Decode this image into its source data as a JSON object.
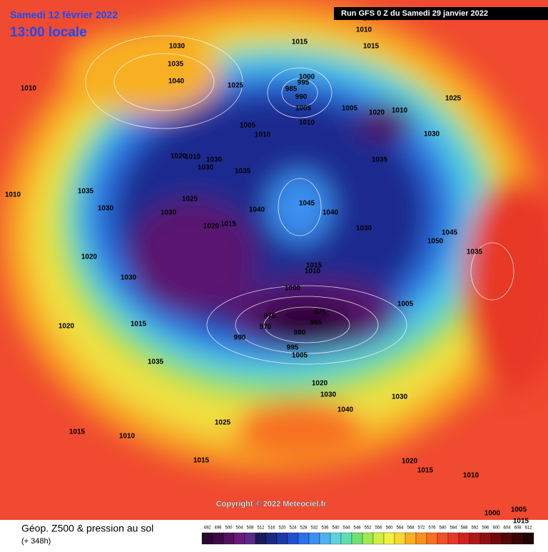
{
  "header": {
    "date": "Samedi 12 février 2022",
    "time": "13:00 locale",
    "run": "Run GFS 0 Z du Samedi 29 janvier 2022"
  },
  "copyright": "Copyright © 2022 Meteociel.fr",
  "footer": {
    "title": "Géop. Z500 & pression au sol",
    "lead": "(+ 348h)"
  },
  "scale": {
    "values": [
      492,
      496,
      500,
      504,
      508,
      512,
      516,
      520,
      524,
      528,
      532,
      536,
      540,
      544,
      548,
      552,
      556,
      560,
      564,
      568,
      572,
      576,
      580,
      584,
      588,
      592,
      596,
      600,
      604,
      608,
      612
    ],
    "colors": [
      "#2a0630",
      "#3c0a46",
      "#52105e",
      "#6a1a7a",
      "#5a2a8a",
      "#1a1a5a",
      "#1a2a80",
      "#1a3aa8",
      "#1e50d0",
      "#2a70e8",
      "#3a90f0",
      "#50b0f0",
      "#60d0e0",
      "#60e0b0",
      "#70e070",
      "#a0e850",
      "#d0f040",
      "#f0f040",
      "#f8d830",
      "#f8b020",
      "#f89020",
      "#f87020",
      "#f05028",
      "#e83828",
      "#d02020",
      "#b01818",
      "#901010",
      "#700a0a",
      "#500808",
      "#380606",
      "#200404"
    ]
  },
  "isobars": [
    1010,
    1030,
    1035,
    1040,
    1010,
    1015,
    1015,
    1025,
    1000,
    995,
    985,
    990,
    1005,
    1005,
    1010,
    1020,
    1010,
    1025,
    1030,
    1005,
    1010,
    1020,
    1010,
    1030,
    1035,
    1035,
    1030,
    1010,
    1035,
    1045,
    1040,
    1025,
    1020,
    1015,
    1030,
    1030,
    1040,
    1045,
    1050,
    1035,
    1030,
    1015,
    1010,
    1000,
    975,
    970,
    965,
    975,
    980,
    990,
    995,
    1005,
    1005,
    1030,
    1035,
    1020,
    1030,
    1040,
    1030,
    1025,
    1015,
    1010,
    1015,
    1020,
    1015,
    1010,
    1005,
    1000,
    1015,
    1030,
    1020,
    1020,
    1015
  ]
}
